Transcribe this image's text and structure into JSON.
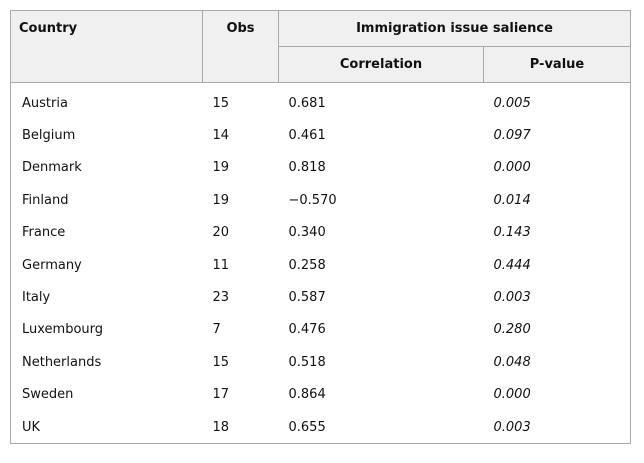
{
  "table": {
    "headers": {
      "country": "Country",
      "obs": "Obs",
      "group": "Immigration issue salience",
      "correlation": "Correlation",
      "pvalue": "P-value"
    },
    "rows": [
      {
        "country": "Austria",
        "obs": "15",
        "correlation": "0.681",
        "pvalue": "0.005"
      },
      {
        "country": "Belgium",
        "obs": "14",
        "correlation": "0.461",
        "pvalue": "0.097"
      },
      {
        "country": "Denmark",
        "obs": "19",
        "correlation": "0.818",
        "pvalue": "0.000"
      },
      {
        "country": "Finland",
        "obs": "19",
        "correlation": "−0.570",
        "pvalue": "0.014"
      },
      {
        "country": "France",
        "obs": "20",
        "correlation": "0.340",
        "pvalue": "0.143"
      },
      {
        "country": "Germany",
        "obs": "11",
        "correlation": "0.258",
        "pvalue": "0.444"
      },
      {
        "country": "Italy",
        "obs": "23",
        "correlation": "0.587",
        "pvalue": "0.003"
      },
      {
        "country": "Luxembourg",
        "obs": "7",
        "correlation": "0.476",
        "pvalue": "0.280"
      },
      {
        "country": "Netherlands",
        "obs": "15",
        "correlation": "0.518",
        "pvalue": "0.048"
      },
      {
        "country": "Sweden",
        "obs": "17",
        "correlation": "0.864",
        "pvalue": "0.000"
      },
      {
        "country": "UK",
        "obs": "18",
        "correlation": "0.655",
        "pvalue": "0.003"
      }
    ]
  }
}
